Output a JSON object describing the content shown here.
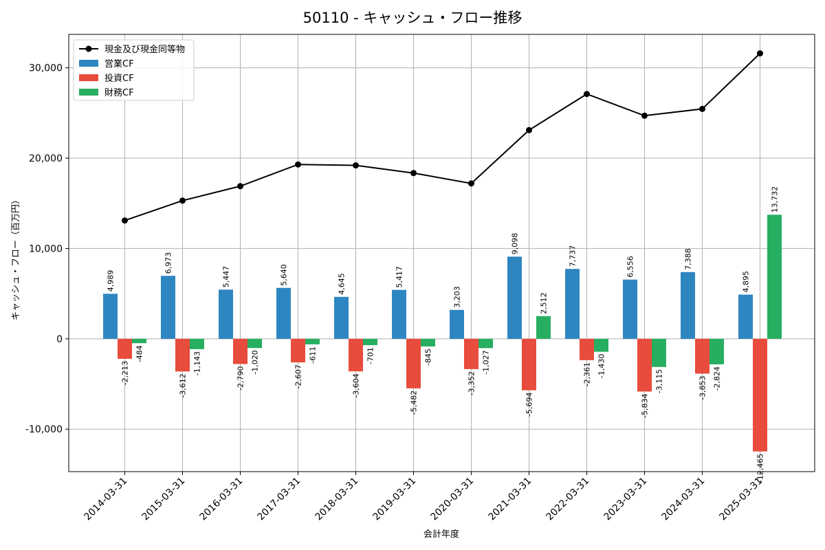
{
  "chart_data": {
    "type": "bar",
    "title": "50110 - キャッシュ・フロー推移",
    "xlabel": "会計年度",
    "ylabel": "キャッシュ・フロー（百万円）",
    "ylim": [
      -14700,
      33700
    ],
    "yticks": [
      -10000,
      0,
      10000,
      20000,
      30000
    ],
    "ytick_labels": [
      "-10,000",
      "0",
      "10,000",
      "20,000",
      "30,000"
    ],
    "grid": true,
    "legend_position": "top-left",
    "categories": [
      "2014-03-31",
      "2015-03-31",
      "2016-03-31",
      "2017-03-31",
      "2018-03-31",
      "2019-03-31",
      "2020-03-31",
      "2021-03-31",
      "2022-03-31",
      "2023-03-31",
      "2024-03-31",
      "2025-03-31"
    ],
    "series": [
      {
        "name": "現金及び現金同等物",
        "kind": "line",
        "color": "#000000",
        "values": [
          13100,
          15300,
          16900,
          19300,
          19200,
          18350,
          17200,
          23100,
          27100,
          24700,
          25450,
          31600
        ]
      },
      {
        "name": "営業CF",
        "kind": "bar",
        "color": "#2e86c1",
        "values": [
          4989,
          6973,
          5447,
          5640,
          4645,
          5417,
          3203,
          9098,
          7737,
          6556,
          7388,
          4895
        ],
        "labels": [
          "4,989",
          "6,973",
          "5,447",
          "5,640",
          "4,645",
          "5,417",
          "3,203",
          "9,098",
          "7,737",
          "6,556",
          "7,388",
          "4,895"
        ]
      },
      {
        "name": "投資CF",
        "kind": "bar",
        "color": "#e74c3c",
        "values": [
          -2213,
          -3612,
          -2790,
          -2607,
          -3604,
          -5482,
          -3352,
          -5694,
          -2361,
          -5834,
          -3853,
          -12465
        ],
        "labels": [
          "-2,213",
          "-3,612",
          "-2,790",
          "-2,607",
          "-3,604",
          "-5,482",
          "-3,352",
          "-5,694",
          "-2,361",
          "-5,834",
          "-3,853",
          "-12,465"
        ]
      },
      {
        "name": "財務CF",
        "kind": "bar",
        "color": "#27ae60",
        "values": [
          -484,
          -1143,
          -1020,
          -611,
          -701,
          -845,
          -1027,
          2512,
          -1430,
          -3115,
          -2824,
          13732
        ],
        "labels": [
          "-484",
          "-1,143",
          "-1,020",
          "-611",
          "-701",
          "-845",
          "-1,027",
          "2,512",
          "-1,430",
          "-3,115",
          "-2,824",
          "13,732"
        ]
      }
    ]
  }
}
